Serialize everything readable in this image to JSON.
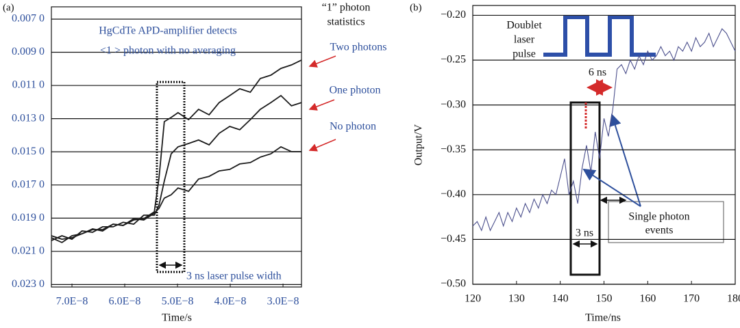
{
  "chart_data": [
    {
      "type": "line",
      "panel_label": "(a)",
      "xlabel": "Time/s",
      "xlim": [
        7.39e-08,
        2.65e-08
      ],
      "ylim": [
        0.02315,
        0.00626
      ],
      "xticks": [
        {
          "value": 7e-08,
          "label": "7.0E−8"
        },
        {
          "value": 6e-08,
          "label": "6.0E−8"
        },
        {
          "value": 5e-08,
          "label": "5.0E−8"
        },
        {
          "value": 4e-08,
          "label": "4.0E−8"
        },
        {
          "value": 3e-08,
          "label": "3.0E−8"
        }
      ],
      "yticks": [
        {
          "value": 0.007,
          "label": "0.007 0"
        },
        {
          "value": 0.009,
          "label": "0.009 0"
        },
        {
          "value": 0.011,
          "label": "0.011 0"
        },
        {
          "value": 0.013,
          "label": "0.013 0"
        },
        {
          "value": 0.015,
          "label": "0.015 0"
        },
        {
          "value": 0.017,
          "label": "0.017 0"
        },
        {
          "value": 0.019,
          "label": "0.019 0"
        },
        {
          "value": 0.021,
          "label": "0.021 0"
        },
        {
          "value": 0.023,
          "label": "0.023 0"
        }
      ],
      "grid": true,
      "x": [
        7.39e-08,
        7.19e-08,
        7e-08,
        6.81e-08,
        6.61e-08,
        6.42e-08,
        6.22e-08,
        6.03e-08,
        5.83e-08,
        5.64e-08,
        5.44e-08,
        5.35e-08,
        5.25e-08,
        5.12e-08,
        4.99e-08,
        4.79e-08,
        4.6e-08,
        4.4e-08,
        4.21e-08,
        4.01e-08,
        3.82e-08,
        3.62e-08,
        3.43e-08,
        3.23e-08,
        3.04e-08,
        2.84e-08,
        2.65e-08
      ],
      "series": [
        {
          "name": "Two photons",
          "color": "#1a1a1a",
          "values": [
            0.02018,
            0.02047,
            0.02006,
            0.01994,
            0.01965,
            0.01977,
            0.01936,
            0.01944,
            0.01911,
            0.01903,
            0.01862,
            0.01656,
            0.01318,
            0.01293,
            0.01264,
            0.01306,
            0.01244,
            0.01277,
            0.01203,
            0.01161,
            0.0112,
            0.01141,
            0.01058,
            0.01038,
            0.00997,
            0.00976,
            0.00947
          ]
        },
        {
          "name": "One photon",
          "color": "#1a1a1a",
          "values": [
            0.02035,
            0.02006,
            0.02027,
            0.01977,
            0.01985,
            0.01952,
            0.01952,
            0.01925,
            0.01936,
            0.01882,
            0.01882,
            0.01821,
            0.01676,
            0.01512,
            0.0147,
            0.0145,
            0.01429,
            0.01458,
            0.01388,
            0.01347,
            0.01367,
            0.01306,
            0.01244,
            0.01203,
            0.01161,
            0.01223,
            0.01203
          ]
        },
        {
          "name": "No photon",
          "color": "#1a1a1a",
          "values": [
            0.02006,
            0.02027,
            0.02018,
            0.01994,
            0.01969,
            0.01969,
            0.01936,
            0.01944,
            0.01903,
            0.01911,
            0.0187,
            0.01841,
            0.01779,
            0.01759,
            0.01718,
            0.01738,
            0.01664,
            0.01648,
            0.01615,
            0.01606,
            0.01573,
            0.01565,
            0.01532,
            0.01512,
            0.0147,
            0.01499,
            0.01499
          ]
        }
      ],
      "annotations": [
        "HgCdTe APD-amplifier detects",
        "<1 > photon with no averaging",
        "3 ns laser pulse width",
        "“1” photon",
        "statistics"
      ]
    },
    {
      "type": "line",
      "panel_label": "(b)",
      "xlabel": "Time/ns",
      "ylabel": "Output/V",
      "xlim": [
        120,
        180
      ],
      "ylim": [
        -0.5,
        -0.189
      ],
      "xticks": [
        120,
        130,
        140,
        150,
        160,
        170,
        180
      ],
      "yticks": [
        {
          "value": -0.2,
          "label": "−0.20"
        },
        {
          "value": -0.25,
          "label": "−0.25"
        },
        {
          "value": -0.3,
          "label": "−0.30"
        },
        {
          "value": -0.35,
          "label": "−0.35"
        },
        {
          "value": -0.4,
          "label": "−0.40"
        },
        {
          "value": -0.45,
          "label": "−0.45"
        },
        {
          "value": -0.5,
          "label": "−0.50"
        }
      ],
      "grid": true,
      "x": [
        120,
        121,
        122,
        123,
        124,
        125,
        126,
        127,
        128,
        129,
        130,
        131,
        132,
        133,
        134,
        135,
        136,
        137,
        138,
        139,
        140,
        141,
        142,
        143,
        144,
        145,
        146,
        147,
        148,
        149,
        150,
        151,
        152,
        153,
        154,
        155,
        156,
        157,
        158,
        159,
        160,
        161,
        162,
        163,
        164,
        165,
        166,
        167,
        168,
        169,
        170,
        171,
        172,
        173,
        174,
        175,
        176,
        177,
        178,
        179,
        180
      ],
      "series": [
        {
          "color": "#4b4f8c",
          "values": [
            -0.435,
            -0.43,
            -0.44,
            -0.425,
            -0.44,
            -0.43,
            -0.42,
            -0.435,
            -0.42,
            -0.43,
            -0.415,
            -0.425,
            -0.41,
            -0.42,
            -0.405,
            -0.415,
            -0.4,
            -0.41,
            -0.395,
            -0.4,
            -0.38,
            -0.36,
            -0.4,
            -0.385,
            -0.41,
            -0.37,
            -0.345,
            -0.375,
            -0.33,
            -0.36,
            -0.315,
            -0.335,
            -0.305,
            -0.26,
            -0.255,
            -0.265,
            -0.25,
            -0.26,
            -0.245,
            -0.255,
            -0.24,
            -0.25,
            -0.245,
            -0.235,
            -0.245,
            -0.24,
            -0.25,
            -0.235,
            -0.24,
            -0.23,
            -0.24,
            -0.225,
            -0.235,
            -0.23,
            -0.22,
            -0.235,
            -0.225,
            -0.215,
            -0.22,
            -0.23,
            -0.24
          ]
        }
      ],
      "annotations": [
        "Doublet",
        "laser",
        "pulse",
        "6 ns",
        "3 ns",
        "Single photon",
        "events"
      ]
    }
  ]
}
